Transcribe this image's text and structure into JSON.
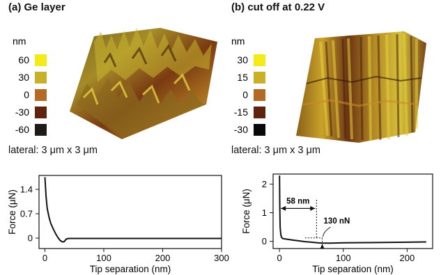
{
  "panels": [
    {
      "title": "(a) Ge layer",
      "legend": {
        "unit": "nm",
        "entries": [
          {
            "label": "60",
            "color": "#f4ea1a"
          },
          {
            "label": "30",
            "color": "#c8b028"
          },
          {
            "label": "0",
            "color": "#b46a22"
          },
          {
            "label": "-30",
            "color": "#5e2410"
          },
          {
            "label": "-60",
            "color": "#1e1a18"
          }
        ]
      },
      "lateral": "lateral: 3 μm x 3 μm"
    },
    {
      "title": "(b) cut off at 0.22 V",
      "legend": {
        "unit": "nm",
        "entries": [
          {
            "label": "30",
            "color": "#f4ea1a"
          },
          {
            "label": "15",
            "color": "#c8b028"
          },
          {
            "label": "0",
            "color": "#b46a22"
          },
          {
            "label": "-15",
            "color": "#5e2410"
          },
          {
            "label": "-30",
            "color": "#0a0808"
          }
        ]
      },
      "lateral": "lateral: 3 μm x 3 μm"
    }
  ],
  "chart_data": [
    {
      "type": "line",
      "xlabel": "Tip separation (nm)",
      "ylabel": "Force (μN)",
      "xlim": [
        -10,
        300
      ],
      "ylim": [
        -0.3,
        1.8
      ],
      "xticks": [
        0,
        100,
        200,
        300
      ],
      "yticks": [
        0,
        0.7,
        1.4
      ],
      "xtick_labels": [
        "0",
        "100",
        "200",
        "300"
      ],
      "ytick_labels": [
        "0",
        "0.7",
        "1.4"
      ],
      "series": [
        {
          "x": [
            0,
            2,
            4,
            7,
            10,
            14,
            18,
            22,
            26,
            30,
            33,
            36,
            40,
            50,
            100,
            150,
            200,
            250,
            300
          ],
          "y": [
            1.75,
            1.2,
            0.85,
            0.6,
            0.42,
            0.27,
            0.13,
            0.02,
            -0.07,
            -0.11,
            -0.1,
            -0.03,
            -0.01,
            -0.01,
            -0.01,
            -0.01,
            -0.01,
            -0.01,
            -0.01
          ]
        }
      ]
    },
    {
      "type": "line",
      "xlabel": "Tip separation (nm)",
      "ylabel": "Force (μN)",
      "xlim": [
        -10,
        240
      ],
      "ylim": [
        -0.25,
        2.35
      ],
      "xticks": [
        0,
        100,
        200
      ],
      "yticks": [
        0,
        1,
        2
      ],
      "xtick_labels": [
        "0",
        "100",
        "200"
      ],
      "ytick_labels": [
        "0",
        "1",
        "2"
      ],
      "series": [
        {
          "x": [
            0,
            0.5,
            1,
            2,
            3,
            5,
            10,
            20,
            30,
            40,
            50,
            60,
            67,
            80,
            100,
            150,
            200,
            230
          ],
          "y": [
            2.3,
            1.2,
            0.5,
            0.25,
            0.15,
            0.1,
            0.08,
            0.05,
            0.02,
            -0.01,
            -0.03,
            -0.05,
            -0.06,
            -0.06,
            -0.05,
            -0.04,
            -0.03,
            -0.02
          ]
        }
      ],
      "annotations": [
        {
          "text": "58 nm"
        },
        {
          "text": "130 nN"
        }
      ]
    }
  ]
}
